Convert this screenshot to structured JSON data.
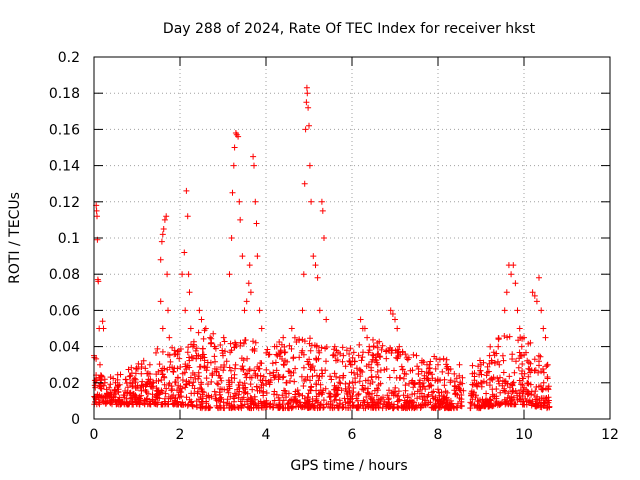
{
  "chart_data": {
    "type": "scatter",
    "title": "Day 288 of 2024, Rate Of TEC Index for receiver hkst",
    "xlabel": "GPS time / hours",
    "ylabel": "ROTI / TECUs",
    "xlim": [
      0,
      12
    ],
    "ylim": [
      0,
      0.2
    ],
    "xticks": [
      0,
      2,
      4,
      6,
      8,
      10,
      12
    ],
    "yticks": [
      0,
      0.02,
      0.04,
      0.06,
      0.08,
      0.1,
      0.12,
      0.14,
      0.16,
      0.18,
      0.2
    ],
    "xtick_labels": [
      "0",
      "2",
      "4",
      "6",
      "8",
      "10",
      "12"
    ],
    "ytick_labels": [
      "0",
      "0.02",
      "0.04",
      "0.06",
      "0.08",
      "0.1",
      "0.12",
      "0.14",
      "0.16",
      "0.18",
      "0.2"
    ],
    "grid": true,
    "marker": "+",
    "color": "#ff0000",
    "series": [
      {
        "name": "ROTI",
        "points": [
          [
            0.0,
            0.035
          ],
          [
            0.02,
            0.012
          ],
          [
            0.04,
            0.02
          ],
          [
            0.05,
            0.118
          ],
          [
            0.06,
            0.115
          ],
          [
            0.07,
            0.112
          ],
          [
            0.08,
            0.099
          ],
          [
            0.09,
            0.077
          ],
          [
            0.1,
            0.076
          ],
          [
            0.12,
            0.05
          ],
          [
            0.14,
            0.03
          ],
          [
            0.16,
            0.018
          ],
          [
            0.2,
            0.054
          ],
          [
            0.22,
            0.05
          ],
          [
            0.25,
            0.022
          ],
          [
            0.3,
            0.014
          ],
          [
            0.5,
            0.02
          ],
          [
            0.7,
            0.012
          ],
          [
            0.9,
            0.018
          ],
          [
            1.1,
            0.025
          ],
          [
            1.3,
            0.03
          ],
          [
            1.55,
            0.088
          ],
          [
            1.58,
            0.098
          ],
          [
            1.6,
            0.102
          ],
          [
            1.62,
            0.105
          ],
          [
            1.65,
            0.11
          ],
          [
            1.68,
            0.112
          ],
          [
            1.7,
            0.08
          ],
          [
            1.72,
            0.06
          ],
          [
            1.75,
            0.045
          ],
          [
            1.55,
            0.065
          ],
          [
            1.6,
            0.05
          ],
          [
            2.05,
            0.08
          ],
          [
            2.1,
            0.092
          ],
          [
            2.12,
            0.06
          ],
          [
            2.15,
            0.126
          ],
          [
            2.18,
            0.112
          ],
          [
            2.2,
            0.08
          ],
          [
            2.22,
            0.07
          ],
          [
            2.25,
            0.05
          ],
          [
            2.3,
            0.04
          ],
          [
            2.45,
            0.06
          ],
          [
            2.5,
            0.055
          ],
          [
            2.6,
            0.05
          ],
          [
            2.7,
            0.045
          ],
          [
            2.8,
            0.04
          ],
          [
            3.0,
            0.035
          ],
          [
            3.15,
            0.08
          ],
          [
            3.2,
            0.1
          ],
          [
            3.22,
            0.125
          ],
          [
            3.25,
            0.14
          ],
          [
            3.27,
            0.15
          ],
          [
            3.3,
            0.158
          ],
          [
            3.32,
            0.157
          ],
          [
            3.35,
            0.156
          ],
          [
            3.38,
            0.12
          ],
          [
            3.4,
            0.11
          ],
          [
            3.45,
            0.09
          ],
          [
            3.5,
            0.06
          ],
          [
            3.55,
            0.065
          ],
          [
            3.6,
            0.075
          ],
          [
            3.62,
            0.085
          ],
          [
            3.65,
            0.07
          ],
          [
            3.7,
            0.145
          ],
          [
            3.72,
            0.14
          ],
          [
            3.75,
            0.12
          ],
          [
            3.78,
            0.108
          ],
          [
            3.8,
            0.09
          ],
          [
            3.85,
            0.06
          ],
          [
            3.9,
            0.05
          ],
          [
            4.2,
            0.04
          ],
          [
            4.4,
            0.045
          ],
          [
            4.6,
            0.05
          ],
          [
            4.85,
            0.06
          ],
          [
            4.88,
            0.08
          ],
          [
            4.9,
            0.13
          ],
          [
            4.92,
            0.16
          ],
          [
            4.94,
            0.175
          ],
          [
            4.95,
            0.183
          ],
          [
            4.96,
            0.18
          ],
          [
            4.98,
            0.172
          ],
          [
            5.0,
            0.162
          ],
          [
            5.02,
            0.14
          ],
          [
            5.05,
            0.12
          ],
          [
            5.1,
            0.09
          ],
          [
            5.15,
            0.085
          ],
          [
            5.2,
            0.078
          ],
          [
            5.25,
            0.06
          ],
          [
            5.3,
            0.12
          ],
          [
            5.32,
            0.115
          ],
          [
            5.35,
            0.1
          ],
          [
            5.4,
            0.055
          ],
          [
            5.6,
            0.04
          ],
          [
            5.8,
            0.035
          ],
          [
            6.0,
            0.03
          ],
          [
            6.2,
            0.055
          ],
          [
            6.25,
            0.05
          ],
          [
            6.3,
            0.05
          ],
          [
            6.35,
            0.045
          ],
          [
            6.4,
            0.04
          ],
          [
            6.5,
            0.035
          ],
          [
            6.6,
            0.03
          ],
          [
            6.9,
            0.06
          ],
          [
            6.95,
            0.058
          ],
          [
            7.0,
            0.055
          ],
          [
            7.05,
            0.05
          ],
          [
            7.1,
            0.04
          ],
          [
            7.5,
            0.035
          ],
          [
            7.8,
            0.03
          ],
          [
            8.0,
            0.03
          ],
          [
            8.2,
            0.028
          ],
          [
            8.5,
            0.03
          ],
          [
            8.8,
            0.025
          ],
          [
            9.0,
            0.03
          ],
          [
            9.2,
            0.035
          ],
          [
            9.4,
            0.04
          ],
          [
            9.55,
            0.06
          ],
          [
            9.6,
            0.07
          ],
          [
            9.65,
            0.085
          ],
          [
            9.7,
            0.08
          ],
          [
            9.75,
            0.085
          ],
          [
            9.8,
            0.075
          ],
          [
            9.85,
            0.06
          ],
          [
            9.9,
            0.05
          ],
          [
            9.95,
            0.04
          ],
          [
            10.0,
            0.045
          ],
          [
            10.2,
            0.07
          ],
          [
            10.25,
            0.068
          ],
          [
            10.3,
            0.065
          ],
          [
            10.35,
            0.078
          ],
          [
            10.4,
            0.06
          ],
          [
            10.45,
            0.05
          ],
          [
            10.5,
            0.045
          ],
          [
            10.55,
            0.03
          ],
          [
            10.57,
            0.012
          ]
        ],
        "dense_band": [
          [
            0.0,
            0.008,
            0.04
          ],
          [
            0.3,
            0.008,
            0.022
          ],
          [
            0.6,
            0.008,
            0.026
          ],
          [
            1.0,
            0.008,
            0.03
          ],
          [
            1.5,
            0.008,
            0.04
          ],
          [
            2.0,
            0.008,
            0.04
          ],
          [
            2.5,
            0.006,
            0.05
          ],
          [
            3.0,
            0.006,
            0.045
          ],
          [
            3.5,
            0.006,
            0.045
          ],
          [
            4.0,
            0.006,
            0.04
          ],
          [
            4.5,
            0.006,
            0.045
          ],
          [
            5.0,
            0.006,
            0.045
          ],
          [
            5.5,
            0.006,
            0.04
          ],
          [
            6.0,
            0.006,
            0.04
          ],
          [
            6.5,
            0.006,
            0.045
          ],
          [
            7.0,
            0.006,
            0.04
          ],
          [
            7.5,
            0.006,
            0.035
          ],
          [
            8.0,
            0.006,
            0.035
          ],
          [
            8.6,
            0.006,
            0.03
          ],
          [
            8.7,
            0.006,
            0.032
          ],
          [
            9.0,
            0.006,
            0.035
          ],
          [
            9.5,
            0.008,
            0.05
          ],
          [
            10.0,
            0.008,
            0.045
          ],
          [
            10.5,
            0.006,
            0.035
          ],
          [
            10.6,
            0.006,
            0.03
          ]
        ],
        "gaps": [
          [
            8.6,
            8.75
          ]
        ]
      }
    ]
  }
}
